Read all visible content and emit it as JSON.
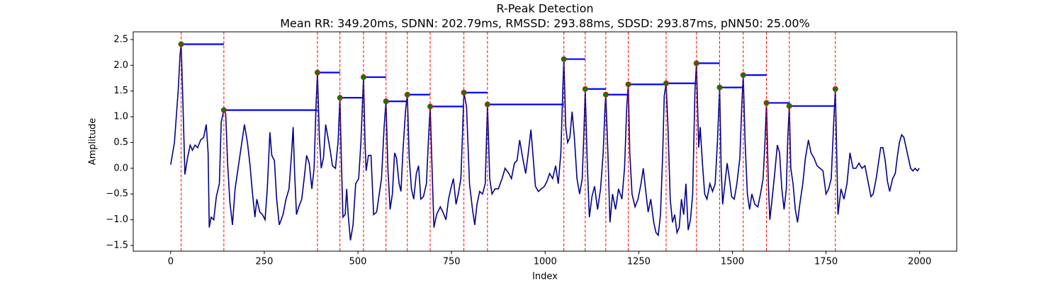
{
  "chart_data": {
    "type": "line",
    "title": "R-Peak Detection",
    "subtitle": "Mean RR: 349.20ms, SDNN: 202.79ms, RMSSD: 293.88ms, SDSD: 293.87ms, pNN50: 25.00%",
    "xlabel": "Index",
    "ylabel": "Amplitude",
    "xlim": [
      -100,
      2099
    ],
    "ylim": [
      -1.61,
      2.65
    ],
    "xticks": [
      0,
      250,
      500,
      750,
      1000,
      1250,
      1500,
      1750,
      2000
    ],
    "yticks": [
      {
        "value": -1.5,
        "label": "−1.5"
      },
      {
        "value": -1,
        "label": "−1.0"
      },
      {
        "value": -0.5,
        "label": "−0.5"
      },
      {
        "value": 0,
        "label": "0.0"
      },
      0.5,
      {
        "value": 1,
        "label": "1.0"
      },
      1.5,
      {
        "value": 2,
        "label": "2.0"
      },
      2.5
    ],
    "grid": false,
    "series": [
      {
        "color": "#00008b",
        "x": [
          0,
          10,
          20,
          25,
          28,
          33,
          38,
          45,
          52,
          58,
          65,
          72,
          80,
          88,
          95,
          100,
          103,
          108,
          115,
          122,
          130,
          135,
          142,
          147,
          152,
          158,
          165,
          172,
          180,
          190,
          197,
          205,
          212,
          218,
          225,
          230,
          238,
          245,
          252,
          258,
          265,
          270,
          277,
          283,
          290,
          295,
          300,
          308,
          316,
          323,
          327,
          331,
          336,
          342,
          350,
          358,
          363,
          370,
          377,
          383,
          388,
          392,
          397,
          402,
          408,
          414,
          420,
          426,
          432,
          440,
          447,
          452,
          456,
          460,
          466,
          470,
          474,
          480,
          487,
          494,
          502,
          508,
          515,
          519,
          522,
          528,
          535,
          542,
          550,
          557,
          563,
          570,
          575,
          580,
          586,
          592,
          598,
          603,
          610,
          615,
          620,
          627,
          632,
          637,
          643,
          649,
          656,
          662,
          668,
          675,
          683,
          688,
          693,
          698,
          703,
          710,
          720,
          727,
          735,
          742,
          748,
          755,
          762,
          768,
          775,
          779,
          783,
          790,
          798,
          806,
          812,
          818,
          825,
          833,
          840,
          846,
          852,
          858,
          866,
          875,
          885,
          893,
          903,
          910,
          918,
          925,
          932,
          940,
          948,
          955,
          962,
          967,
          974,
          982,
          990,
          998,
          1005,
          1012,
          1020,
          1028,
          1035,
          1042,
          1047,
          1050,
          1055,
          1060,
          1066,
          1072,
          1078,
          1085,
          1092,
          1099,
          1104,
          1107,
          1112,
          1118,
          1125,
          1132,
          1140,
          1148,
          1155,
          1160,
          1162,
          1168,
          1173,
          1180,
          1188,
          1196,
          1205,
          1212,
          1218,
          1222,
          1226,
          1232,
          1240,
          1248,
          1256,
          1262,
          1268,
          1275,
          1282,
          1290,
          1296,
          1302,
          1308,
          1314,
          1318,
          1323,
          1328,
          1334,
          1340,
          1346,
          1352,
          1358,
          1364,
          1370,
          1376,
          1382,
          1388,
          1394,
          1400,
          1404,
          1410,
          1414,
          1420,
          1426,
          1432,
          1440,
          1447,
          1454,
          1460,
          1466,
          1470,
          1474,
          1480,
          1486,
          1492,
          1498,
          1505,
          1512,
          1520,
          1525,
          1529,
          1534,
          1540,
          1546,
          1552,
          1560,
          1568,
          1575,
          1582,
          1587,
          1591,
          1596,
          1600,
          1606,
          1613,
          1620,
          1626,
          1632,
          1638,
          1644,
          1648,
          1652,
          1656,
          1662,
          1668,
          1674,
          1680,
          1688,
          1695,
          1703,
          1710,
          1718,
          1726,
          1734,
          1742,
          1750,
          1757,
          1764,
          1770,
          1775,
          1778,
          1782,
          1790,
          1798,
          1806,
          1814,
          1822,
          1830,
          1838,
          1846,
          1854,
          1862,
          1870,
          1876,
          1884,
          1890,
          1896,
          1902,
          1908,
          1914,
          1920,
          1928,
          1935,
          1940,
          1946,
          1952,
          1958,
          1964,
          1970,
          1976,
          1982,
          1988,
          1994,
          1999
        ],
        "values": [
          0.07,
          0.5,
          1.5,
          2.2,
          2.41,
          1.2,
          -0.12,
          0.2,
          0.45,
          0.35,
          0.45,
          0.4,
          0.55,
          0.6,
          0.85,
          0.3,
          -1.15,
          -0.95,
          -1.0,
          -0.55,
          -0.3,
          0.9,
          1.13,
          1.05,
          0.1,
          -0.65,
          -1.1,
          -0.4,
          0.0,
          0.5,
          0.85,
          0.5,
          0.05,
          -0.45,
          -0.95,
          -0.6,
          -0.85,
          -0.9,
          -1.0,
          -0.4,
          0.7,
          0.25,
          0.15,
          -0.6,
          -1.1,
          -1.0,
          -0.9,
          -0.6,
          -0.4,
          0.3,
          0.8,
          -0.1,
          -0.9,
          -0.75,
          -0.6,
          -0.1,
          0.25,
          0.1,
          -0.4,
          0.0,
          1.2,
          1.86,
          0.6,
          0.0,
          0.2,
          0.85,
          0.6,
          0.35,
          0.05,
          0.0,
          0.5,
          1.37,
          0.1,
          -0.95,
          -0.9,
          -0.4,
          -0.9,
          -1.4,
          -1.1,
          -0.3,
          -0.2,
          0.5,
          1.77,
          0.5,
          -0.05,
          0.25,
          0.25,
          -0.9,
          -0.85,
          -0.5,
          -0.2,
          0.8,
          1.3,
          0.0,
          -0.8,
          -0.5,
          0.3,
          0.2,
          -0.3,
          -0.45,
          0.3,
          1.1,
          1.43,
          0.2,
          -0.4,
          -0.6,
          -0.1,
          0.05,
          -0.6,
          -0.55,
          -0.3,
          0.5,
          1.2,
          0.0,
          -1.15,
          -0.9,
          -0.75,
          -0.85,
          -1.0,
          -0.6,
          -0.4,
          -0.2,
          -0.7,
          -0.5,
          -0.2,
          0.6,
          1.47,
          1.2,
          -0.3,
          -0.8,
          -1.1,
          -0.7,
          -0.45,
          -0.5,
          -0.3,
          1.24,
          -0.2,
          -0.5,
          -0.4,
          -0.4,
          -0.2,
          0.0,
          -0.1,
          -0.2,
          0.1,
          0.15,
          0.55,
          0.2,
          -0.1,
          0.3,
          0.75,
          0.3,
          -0.35,
          -0.45,
          -0.4,
          -0.35,
          -0.25,
          -0.1,
          -0.2,
          0.05,
          -0.3,
          0.3,
          1.5,
          2.12,
          0.8,
          0.5,
          0.6,
          1.1,
          0.6,
          -0.2,
          -0.5,
          -0.2,
          0.8,
          1.54,
          0.2,
          -0.95,
          -0.55,
          -0.35,
          -0.8,
          -0.4,
          0.3,
          1.2,
          1.43,
          0.2,
          -1.05,
          -0.5,
          -0.8,
          -0.4,
          -0.6,
          0.0,
          1.2,
          1.63,
          0.3,
          -0.5,
          -0.75,
          -0.6,
          -0.3,
          0.0,
          -0.4,
          -0.85,
          -0.6,
          -1.05,
          -1.25,
          -1.3,
          -0.9,
          0.3,
          1.4,
          1.65,
          0.8,
          -0.6,
          -1.05,
          -0.9,
          -1.25,
          -1.15,
          -0.6,
          -0.9,
          -0.3,
          -1.2,
          -1.0,
          -0.5,
          1.5,
          2.04,
          0.4,
          0.8,
          0.1,
          -0.5,
          -0.6,
          -0.3,
          -0.45,
          -0.3,
          0.5,
          1.57,
          0.0,
          -0.7,
          -0.3,
          0.1,
          -0.2,
          -0.55,
          -0.6,
          -0.3,
          0.2,
          1.2,
          1.81,
          0.5,
          -0.5,
          -0.8,
          -0.5,
          -0.7,
          -0.75,
          -0.5,
          -0.2,
          0.5,
          1.27,
          -0.3,
          -1.0,
          -0.6,
          -0.1,
          0.45,
          0.3,
          -0.4,
          -0.8,
          -0.4,
          0.6,
          1.21,
          0.0,
          -0.3,
          -0.8,
          -1.05,
          -0.7,
          -0.3,
          0.2,
          0.55,
          0.3,
          0.2,
          0.05,
          0.0,
          -0.05,
          -0.5,
          -0.4,
          -0.2,
          0.8,
          1.54,
          0.5,
          -0.9,
          -0.4,
          -0.6,
          -0.3,
          0.3,
          0.0,
          0.0,
          0.1,
          0.0,
          0.05,
          -0.25,
          -0.55,
          -0.5,
          -0.2,
          0.1,
          0.4,
          0.4,
          0.15,
          -0.25,
          -0.45,
          -0.2,
          -0.1,
          0.2,
          0.5,
          0.65,
          0.6,
          0.4,
          0.2,
          0.0,
          -0.05,
          0.0,
          -0.05,
          0.0
        ]
      }
    ],
    "peaks": {
      "color": "green",
      "edge_color": "red",
      "rr_color": "blue",
      "marker_line_color": "red",
      "x": [
        28,
        142,
        392,
        452,
        515,
        575,
        632,
        693,
        783,
        846,
        1050,
        1107,
        1162,
        1222,
        1323,
        1404,
        1466,
        1529,
        1591,
        1652,
        1775
      ],
      "values": [
        2.41,
        1.13,
        1.86,
        1.37,
        1.77,
        1.3,
        1.43,
        1.2,
        1.47,
        1.24,
        2.12,
        1.54,
        1.43,
        1.63,
        1.65,
        2.04,
        1.57,
        1.81,
        1.27,
        1.21,
        1.54
      ]
    }
  }
}
